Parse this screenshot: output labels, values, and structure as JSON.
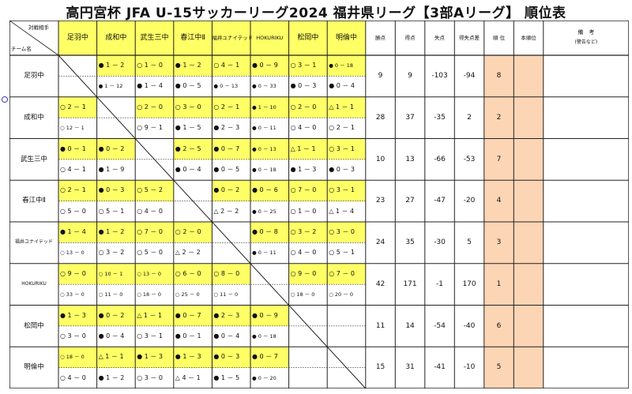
{
  "title": "高円宮杯 JFA U-15サッカーリーグ2024 福井県リーグ【3部Aリーグ】 順位表",
  "header": {
    "opponent_label": "対戦相手",
    "team_label": "チーム名",
    "teams": [
      "足羽中",
      "成和中",
      "武生三中",
      "春江中Ⅱ",
      "福井ユナイテッド",
      "HOKURIKU",
      "松岡中",
      "明倫中"
    ],
    "points": "勝点",
    "goals_for": "得点",
    "goals_against": "失点",
    "goal_diff": "得失点差",
    "rank": "順 位",
    "final_rank": "本順位",
    "note": "備　考",
    "note_sub": "(警告など)"
  },
  "rows": [
    {
      "team": "足羽中",
      "cells": [
        [
          "",
          ""
        ],
        [
          "● 1 － 2",
          "● 1 － 12"
        ],
        [
          "○ 1 － 0",
          "● 1 － 4"
        ],
        [
          "● 1 － 2",
          "● 0 － 5"
        ],
        [
          "○ 4 － 1",
          "● 0 － 13"
        ],
        [
          "● 0 － 9",
          "● 0 － 33"
        ],
        [
          "○ 3 － 1",
          "● 0 － 3"
        ],
        [
          "● 0 － 18",
          "● 0 － 4"
        ]
      ],
      "points": "9",
      "gf": "9",
      "ga": "-103",
      "gd": "-94",
      "rank": "8"
    },
    {
      "team": "成和中",
      "cells": [
        [
          "○ 2 － 1",
          "○ 12 － 1"
        ],
        [
          "",
          ""
        ],
        [
          "○ 2 － 0",
          "○ 9 － 1"
        ],
        [
          "○ 3 － 0",
          "● 1 － 5"
        ],
        [
          "○ 2 － 1",
          "● 2 － 3"
        ],
        [
          "● 1 － 10",
          "● 0 － 11"
        ],
        [
          "○ 2 － 0",
          "○ 4 － 0"
        ],
        [
          "△ 1 － 1",
          "○ 2 － 1"
        ]
      ],
      "points": "28",
      "gf": "37",
      "ga": "-35",
      "gd": "2",
      "rank": "2"
    },
    {
      "team": "武生三中",
      "cells": [
        [
          "● 0 － 1",
          "○ 4 － 1"
        ],
        [
          "● 0 － 2",
          "● 1 － 9"
        ],
        [
          "",
          ""
        ],
        [
          "● 2 － 5",
          "● 0 － 4"
        ],
        [
          "● 0 － 7",
          "● 0 － 5"
        ],
        [
          "● 0 － 13",
          "● 0 － 18"
        ],
        [
          "△ 1 － 1",
          "● 1 － 3"
        ],
        [
          "○ 3 － 1",
          "● 0 － 3"
        ]
      ],
      "points": "10",
      "gf": "13",
      "ga": "-66",
      "gd": "-53",
      "rank": "7"
    },
    {
      "team": "春江中Ⅱ",
      "cells": [
        [
          "○ 2 － 1",
          "○ 5 － 0"
        ],
        [
          "● 0 － 3",
          "○ 5 － 1"
        ],
        [
          "○ 5 － 2",
          "○ 4 － 0"
        ],
        [
          "",
          ""
        ],
        [
          "● 0 － 2",
          "△ 2 － 2"
        ],
        [
          "● 0 － 6",
          "● 0 － 25"
        ],
        [
          "○ 7 － 0",
          "○ 1 － 0"
        ],
        [
          "○ 3 － 1",
          "△ 1 － 4"
        ]
      ],
      "points": "23",
      "gf": "27",
      "ga": "-47",
      "gd": "-20",
      "rank": "4"
    },
    {
      "team": "福井ユナイテッド",
      "cells": [
        [
          "● 1 － 4",
          "○ 13 － 0"
        ],
        [
          "● 1 － 2",
          "○ 3 － 2"
        ],
        [
          "○ 7 － 0",
          "○ 5 － 0"
        ],
        [
          "○ 2 － 0",
          "△ 2 － 2"
        ],
        [
          "",
          ""
        ],
        [
          "● 0 － 8",
          "● 0 － 11"
        ],
        [
          "○ 3 － 2",
          "○ 4 － 0"
        ],
        [
          "○ 3 － 0",
          "○ 5 － 1"
        ]
      ],
      "points": "24",
      "gf": "35",
      "ga": "-30",
      "gd": "5",
      "rank": "3"
    },
    {
      "team": "HOKURIKU",
      "cells": [
        [
          "○ 9 － 0",
          "○ 33 － 0"
        ],
        [
          "○ 10 － 1",
          "○ 11 － 0"
        ],
        [
          "○ 13 － 0",
          "○ 18 － 0"
        ],
        [
          "○ 6 － 0",
          "○ 25 － 0"
        ],
        [
          "○ 8 － 0",
          "○ 11 － 0"
        ],
        [
          "",
          ""
        ],
        [
          "○ 9 － 0",
          "○ 18 － 0"
        ],
        [
          "○ 7 － 0",
          "○ 20 － 0"
        ]
      ],
      "points": "42",
      "gf": "171",
      "ga": "-1",
      "gd": "170",
      "rank": "1"
    },
    {
      "team": "松岡中",
      "cells": [
        [
          "● 1 － 3",
          "○ 3 － 0"
        ],
        [
          "● 0 － 2",
          "● 0 － 4"
        ],
        [
          "△ 1 － 1",
          "○ 3 － 1"
        ],
        [
          "● 0 － 7",
          "● 0 － 1"
        ],
        [
          "● 2 － 3",
          "● 0 － 4"
        ],
        [
          "● 0 － 9",
          "● 0 － 18"
        ],
        [
          "",
          ""
        ],
        [
          "",
          ""
        ]
      ],
      "points": "11",
      "gf": "14",
      "ga": "-54",
      "gd": "-40",
      "rank": "6"
    },
    {
      "team": "明倫中",
      "cells": [
        [
          "○ 18 － 0",
          "○ 4 － 0"
        ],
        [
          "△ 1 － 1",
          "● 1 － 2"
        ],
        [
          "● 1 － 3",
          "○ 3 － 0"
        ],
        [
          "● 1 － 3",
          "△ 4 － 1"
        ],
        [
          "● 0 － 3",
          "● 1 － 5"
        ],
        [
          "● 0 － 7",
          "● 0 － 20"
        ],
        [
          "",
          ""
        ],
        [
          "",
          ""
        ]
      ],
      "points": "15",
      "gf": "31",
      "ga": "-41",
      "gd": "-10",
      "rank": "5"
    }
  ],
  "colors": {
    "yellow": "#ffff66",
    "rank_bg": "#fcd5b5",
    "final_bg": "#fcd5b5",
    "grid": "#222222"
  }
}
